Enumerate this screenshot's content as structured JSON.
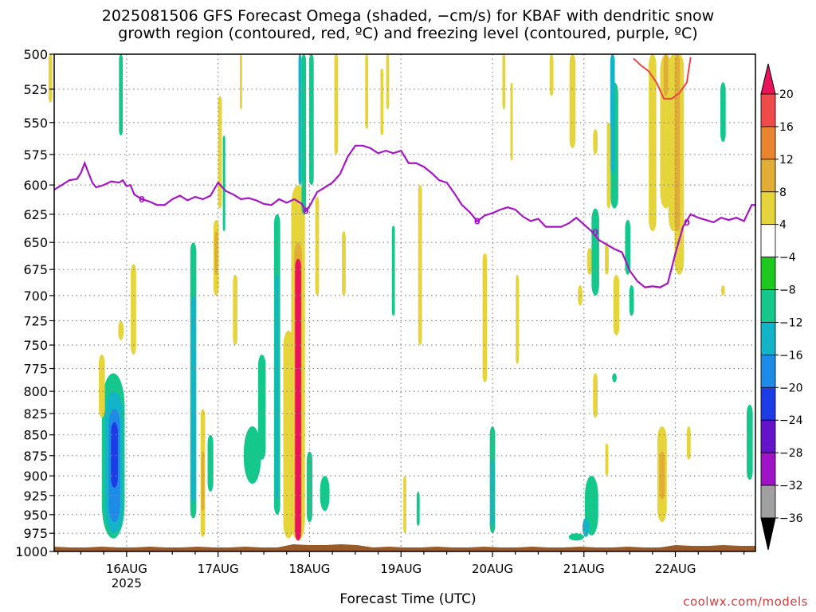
{
  "title": {
    "line1": "2025081506 GFS Forecast Omega (shaded, −cm/s) for KBAF with dendritic snow",
    "line2": "growth region (contoured, red, ºC) and freezing level (contoured, purple, ºC)"
  },
  "credit": "coolwx.com/models",
  "chart_data": {
    "type": "heatmap",
    "xlabel": "Forecast Time (UTC)",
    "ylabel": "",
    "x_range_hours": [
      -19,
      165
    ],
    "y_range_hpa": [
      1000,
      500
    ],
    "y_scale": "log-pressure",
    "y_ticks": [
      500,
      525,
      550,
      575,
      600,
      625,
      650,
      675,
      700,
      725,
      750,
      775,
      800,
      825,
      850,
      875,
      900,
      925,
      950,
      975,
      1000
    ],
    "x_ticks": [
      {
        "hour": 0,
        "label": "16AUG",
        "label2": "2025"
      },
      {
        "hour": 24,
        "label": "17AUG"
      },
      {
        "hour": 48,
        "label": "18AUG"
      },
      {
        "hour": 72,
        "label": "19AUG"
      },
      {
        "hour": 96,
        "label": "20AUG"
      },
      {
        "hour": 120,
        "label": "21AUG"
      },
      {
        "hour": 144,
        "label": "22AUG"
      }
    ],
    "grid": true,
    "colorbar": {
      "levels": [
        "20",
        "16",
        "12",
        "8",
        "4",
        "−4",
        "−8",
        "−12",
        "−16",
        "−20",
        "−24",
        "−28",
        "−32",
        "−36"
      ],
      "colors": [
        "#e8135a",
        "#f04b4b",
        "#e8852e",
        "#e0ad37",
        "#e6d43c",
        "#ffffff",
        "#1ec81e",
        "#14c88c",
        "#14b4c8",
        "#1e8ce6",
        "#1e3ce6",
        "#6414c8",
        "#a014c8",
        "#a0a0a0",
        "#000000"
      ]
    },
    "freezing_level_label": "0",
    "freezing_level": [
      [
        -19,
        604
      ],
      [
        -17,
        600
      ],
      [
        -15,
        596
      ],
      [
        -13,
        595
      ],
      [
        -12,
        590
      ],
      [
        -11,
        582
      ],
      [
        -10,
        590
      ],
      [
        -9,
        598
      ],
      [
        -8,
        602
      ],
      [
        -6,
        600
      ],
      [
        -4,
        597
      ],
      [
        -2,
        598
      ],
      [
        -1,
        596
      ],
      [
        0,
        601
      ],
      [
        1,
        600
      ],
      [
        2,
        608
      ],
      [
        4,
        612
      ],
      [
        6,
        614
      ],
      [
        8,
        617
      ],
      [
        10,
        617
      ],
      [
        12,
        612
      ],
      [
        14,
        609
      ],
      [
        16,
        613
      ],
      [
        18,
        610
      ],
      [
        20,
        612
      ],
      [
        22,
        609
      ],
      [
        24,
        598
      ],
      [
        26,
        605
      ],
      [
        28,
        608
      ],
      [
        30,
        612
      ],
      [
        32,
        611
      ],
      [
        34,
        613
      ],
      [
        36,
        616
      ],
      [
        38,
        617
      ],
      [
        40,
        612
      ],
      [
        42,
        615
      ],
      [
        44,
        612
      ],
      [
        46,
        616
      ],
      [
        47,
        622
      ],
      [
        48,
        618
      ],
      [
        50,
        606
      ],
      [
        52,
        602
      ],
      [
        54,
        598
      ],
      [
        56,
        591
      ],
      [
        58,
        577
      ],
      [
        60,
        568
      ],
      [
        62,
        568
      ],
      [
        64,
        570
      ],
      [
        66,
        574
      ],
      [
        68,
        572
      ],
      [
        70,
        574
      ],
      [
        72,
        572
      ],
      [
        74,
        582
      ],
      [
        76,
        582
      ],
      [
        78,
        585
      ],
      [
        80,
        590
      ],
      [
        82,
        596
      ],
      [
        84,
        598
      ],
      [
        86,
        607
      ],
      [
        88,
        617
      ],
      [
        90,
        623
      ],
      [
        92,
        631
      ],
      [
        94,
        626
      ],
      [
        96,
        624
      ],
      [
        98,
        621
      ],
      [
        100,
        619
      ],
      [
        102,
        621
      ],
      [
        104,
        627
      ],
      [
        106,
        631
      ],
      [
        108,
        629
      ],
      [
        110,
        636
      ],
      [
        114,
        636
      ],
      [
        116,
        633
      ],
      [
        118,
        628
      ],
      [
        120,
        634
      ],
      [
        122,
        640
      ],
      [
        124,
        648
      ],
      [
        126,
        652
      ],
      [
        128,
        656
      ],
      [
        130,
        659
      ],
      [
        132,
        676
      ],
      [
        134,
        686
      ],
      [
        136,
        692
      ],
      [
        138,
        691
      ],
      [
        140,
        692
      ],
      [
        142,
        688
      ],
      [
        144,
        660
      ],
      [
        146,
        636
      ],
      [
        148,
        625
      ],
      [
        150,
        628
      ],
      [
        152,
        630
      ],
      [
        154,
        632
      ],
      [
        156,
        628
      ],
      [
        158,
        630
      ],
      [
        160,
        628
      ],
      [
        162,
        631
      ],
      [
        164,
        617
      ],
      [
        165,
        617
      ]
    ],
    "dgz_isotherm": [
      [
        133,
        503
      ],
      [
        135,
        508
      ],
      [
        137,
        512
      ],
      [
        139,
        520
      ],
      [
        141,
        532
      ],
      [
        143,
        532
      ],
      [
        145,
        528
      ],
      [
        147,
        520
      ],
      [
        148,
        502
      ]
    ],
    "omega_cells": [
      {
        "h": -3.5,
        "w": 6,
        "p1": 780,
        "p2": 982,
        "v": -8
      },
      {
        "h": -3.3,
        "w": 4.6,
        "p1": 800,
        "p2": 975,
        "v": -12
      },
      {
        "h": -3.2,
        "w": 3,
        "p1": 820,
        "p2": 960,
        "v": -16
      },
      {
        "h": -3.2,
        "w": 1.8,
        "p1": 835,
        "p2": 915,
        "v": -20
      },
      {
        "h": -6.5,
        "w": 1.6,
        "p1": 760,
        "p2": 830,
        "v": 6
      },
      {
        "h": 1.8,
        "w": 1.4,
        "p1": 670,
        "p2": 760,
        "v": 6
      },
      {
        "h": -1.5,
        "w": 1.4,
        "p1": 725,
        "p2": 745,
        "v": 6
      },
      {
        "h": -1.5,
        "w": 1.0,
        "p1": 500,
        "p2": 560,
        "v": -8
      },
      {
        "h": -20.0,
        "w": 1.0,
        "p1": 500,
        "p2": 535,
        "v": 6
      },
      {
        "h": 17.5,
        "w": 1.6,
        "p1": 650,
        "p2": 955,
        "v": -8
      },
      {
        "h": 17.5,
        "w": 1.0,
        "p1": 700,
        "p2": 935,
        "v": -12
      },
      {
        "h": 20.0,
        "w": 1.2,
        "p1": 820,
        "p2": 980,
        "v": 6
      },
      {
        "h": 20.0,
        "w": 0.8,
        "p1": 870,
        "p2": 945,
        "v": 10
      },
      {
        "h": 22.0,
        "w": 1.5,
        "p1": 850,
        "p2": 920,
        "v": -8
      },
      {
        "h": 23.5,
        "w": 1.4,
        "p1": 630,
        "p2": 700,
        "v": 6
      },
      {
        "h": 23.5,
        "w": 0.8,
        "p1": 640,
        "p2": 680,
        "v": 10
      },
      {
        "h": 24.5,
        "w": 1.0,
        "p1": 530,
        "p2": 620,
        "v": 6
      },
      {
        "h": 25.5,
        "w": 0.5,
        "p1": 560,
        "p2": 640,
        "v": -8
      },
      {
        "h": 28.5,
        "w": 1.2,
        "p1": 680,
        "p2": 750,
        "v": 6
      },
      {
        "h": 33.0,
        "w": 4.5,
        "p1": 840,
        "p2": 910,
        "v": -8
      },
      {
        "h": 35.5,
        "w": 2.0,
        "p1": 760,
        "p2": 880,
        "v": -8
      },
      {
        "h": 30.0,
        "w": 0.6,
        "p1": 500,
        "p2": 540,
        "v": 6
      },
      {
        "h": 39.5,
        "w": 1.6,
        "p1": 625,
        "p2": 950,
        "v": -8
      },
      {
        "h": 39.5,
        "w": 0.9,
        "p1": 680,
        "p2": 930,
        "v": -12
      },
      {
        "h": 42.5,
        "w": 2.8,
        "p1": 735,
        "p2": 982,
        "v": 6
      },
      {
        "h": 45.0,
        "w": 3.6,
        "p1": 600,
        "p2": 985,
        "v": 6
      },
      {
        "h": 45.0,
        "w": 2.0,
        "p1": 650,
        "p2": 985,
        "v": 10
      },
      {
        "h": 45.0,
        "w": 1.6,
        "p1": 665,
        "p2": 985,
        "v": 20
      },
      {
        "h": 46.5,
        "w": 1.2,
        "p1": 500,
        "p2": 625,
        "v": -8
      },
      {
        "h": 45.5,
        "w": 0.8,
        "p1": 500,
        "p2": 600,
        "v": -12
      },
      {
        "h": 48.5,
        "w": 1.2,
        "p1": 500,
        "p2": 600,
        "v": -8
      },
      {
        "h": 50.0,
        "w": 1.0,
        "p1": 610,
        "p2": 700,
        "v": 6
      },
      {
        "h": 48.0,
        "w": 1.5,
        "p1": 870,
        "p2": 960,
        "v": -8
      },
      {
        "h": 52.0,
        "w": 2.5,
        "p1": 900,
        "p2": 945,
        "v": -8
      },
      {
        "h": 55.0,
        "w": 1.0,
        "p1": 500,
        "p2": 575,
        "v": 6
      },
      {
        "h": 57.0,
        "w": 1.0,
        "p1": 640,
        "p2": 700,
        "v": 6
      },
      {
        "h": 63.0,
        "w": 0.8,
        "p1": 500,
        "p2": 555,
        "v": 6
      },
      {
        "h": 67.0,
        "w": 0.8,
        "p1": 510,
        "p2": 560,
        "v": 6
      },
      {
        "h": 70.0,
        "w": 0.8,
        "p1": 635,
        "p2": 720,
        "v": -8
      },
      {
        "h": 68.5,
        "w": 0.8,
        "p1": 500,
        "p2": 540,
        "v": 6
      },
      {
        "h": 73.0,
        "w": 0.8,
        "p1": 900,
        "p2": 975,
        "v": 6
      },
      {
        "h": 77.0,
        "w": 1.0,
        "p1": 600,
        "p2": 750,
        "v": 6
      },
      {
        "h": 76.5,
        "w": 0.8,
        "p1": 920,
        "p2": 965,
        "v": -8
      },
      {
        "h": 94.0,
        "w": 1.2,
        "p1": 660,
        "p2": 790,
        "v": 6
      },
      {
        "h": 96.0,
        "w": 1.4,
        "p1": 840,
        "p2": 975,
        "v": -8
      },
      {
        "h": 96.0,
        "w": 0.8,
        "p1": 880,
        "p2": 965,
        "v": -12
      },
      {
        "h": 99.0,
        "w": 0.8,
        "p1": 500,
        "p2": 540,
        "v": 6
      },
      {
        "h": 102.5,
        "w": 0.8,
        "p1": 680,
        "p2": 770,
        "v": 6
      },
      {
        "h": 101.0,
        "w": 0.6,
        "p1": 520,
        "p2": 580,
        "v": 6
      },
      {
        "h": 111.5,
        "w": 1.0,
        "p1": 500,
        "p2": 530,
        "v": 6
      },
      {
        "h": 117.0,
        "w": 1.6,
        "p1": 500,
        "p2": 570,
        "v": 6
      },
      {
        "h": 123.0,
        "w": 1.2,
        "p1": 555,
        "p2": 575,
        "v": 6
      },
      {
        "h": 121.5,
        "w": 1.4,
        "p1": 655,
        "p2": 680,
        "v": 6
      },
      {
        "h": 119.0,
        "w": 1.2,
        "p1": 690,
        "p2": 710,
        "v": 6
      },
      {
        "h": 123.0,
        "w": 2.0,
        "p1": 620,
        "p2": 700,
        "v": -8
      },
      {
        "h": 128.0,
        "w": 2.0,
        "p1": 520,
        "p2": 620,
        "v": -8
      },
      {
        "h": 127.5,
        "w": 1.2,
        "p1": 500,
        "p2": 590,
        "v": -12
      },
      {
        "h": 126.5,
        "w": 1.0,
        "p1": 550,
        "p2": 620,
        "v": 6
      },
      {
        "h": 126.0,
        "w": 1.0,
        "p1": 650,
        "p2": 680,
        "v": 6
      },
      {
        "h": 128.5,
        "w": 1.6,
        "p1": 680,
        "p2": 740,
        "v": 6
      },
      {
        "h": 131.5,
        "w": 1.4,
        "p1": 630,
        "p2": 680,
        "v": -8
      },
      {
        "h": 132.5,
        "w": 1.2,
        "p1": 690,
        "p2": 720,
        "v": -8
      },
      {
        "h": 123.0,
        "w": 1.2,
        "p1": 780,
        "p2": 830,
        "v": 6
      },
      {
        "h": 128.0,
        "w": 1.2,
        "p1": 780,
        "p2": 790,
        "v": -8
      },
      {
        "h": 122.0,
        "w": 3.5,
        "p1": 900,
        "p2": 978,
        "v": -8
      },
      {
        "h": 120.5,
        "w": 1.8,
        "p1": 955,
        "p2": 980,
        "v": -12
      },
      {
        "h": 118.0,
        "w": 4.0,
        "p1": 975,
        "p2": 985,
        "v": -8
      },
      {
        "h": 126.0,
        "w": 0.8,
        "p1": 860,
        "p2": 900,
        "v": 6
      },
      {
        "h": 138.0,
        "w": 2.0,
        "p1": 500,
        "p2": 640,
        "v": 6
      },
      {
        "h": 141.5,
        "w": 3.0,
        "p1": 500,
        "p2": 620,
        "v": 6
      },
      {
        "h": 141.5,
        "w": 1.2,
        "p1": 500,
        "p2": 530,
        "v": 10
      },
      {
        "h": 143.5,
        "w": 2.6,
        "p1": 500,
        "p2": 640,
        "v": 6
      },
      {
        "h": 145.0,
        "w": 2.5,
        "p1": 500,
        "p2": 680,
        "v": 6
      },
      {
        "h": 144.5,
        "w": 1.4,
        "p1": 500,
        "p2": 640,
        "v": 10
      },
      {
        "h": 140.5,
        "w": 2.5,
        "p1": 840,
        "p2": 960,
        "v": 6
      },
      {
        "h": 140.5,
        "w": 1.4,
        "p1": 870,
        "p2": 930,
        "v": 10
      },
      {
        "h": 147.5,
        "w": 1.0,
        "p1": 840,
        "p2": 880,
        "v": 6
      },
      {
        "h": 156.5,
        "w": 1.4,
        "p1": 520,
        "p2": 565,
        "v": -8
      },
      {
        "h": 156.5,
        "w": 1.0,
        "p1": 690,
        "p2": 700,
        "v": 6
      },
      {
        "h": 163.5,
        "w": 1.6,
        "p1": 815,
        "p2": 905,
        "v": -8
      }
    ],
    "terrain_color": "#9a5a28",
    "freezing_color": "#a515c4",
    "dgz_color": "#ef4444"
  }
}
